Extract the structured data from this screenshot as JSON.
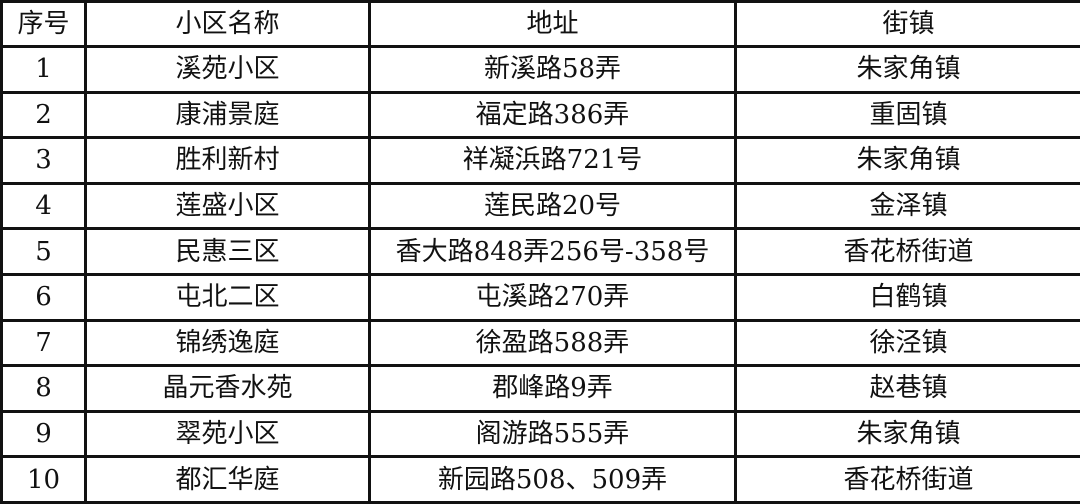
{
  "table": {
    "headers": [
      "序号",
      "小区名称",
      "地址",
      "街镇"
    ],
    "rows": [
      [
        "1",
        "溪苑小区",
        "新溪路58弄",
        "朱家角镇"
      ],
      [
        "2",
        "康浦景庭",
        "福定路386弄",
        "重固镇"
      ],
      [
        "3",
        "胜利新村",
        "祥凝浜路721号",
        "朱家角镇"
      ],
      [
        "4",
        "莲盛小区",
        "莲民路20号",
        "金泽镇"
      ],
      [
        "5",
        "民惠三区",
        "香大路848弄256号-358号",
        "香花桥街道"
      ],
      [
        "6",
        "屯北二区",
        "屯溪路270弄",
        "白鹤镇"
      ],
      [
        "7",
        "锦绣逸庭",
        "徐盈路588弄",
        "徐泾镇"
      ],
      [
        "8",
        "晶元香水苑",
        "郡峰路9弄",
        "赵巷镇"
      ],
      [
        "9",
        "翠苑小区",
        "阁游路555弄",
        "朱家角镇"
      ],
      [
        "10",
        "都汇华庭",
        "新园路508、509弄",
        "香花桥街道"
      ]
    ]
  }
}
